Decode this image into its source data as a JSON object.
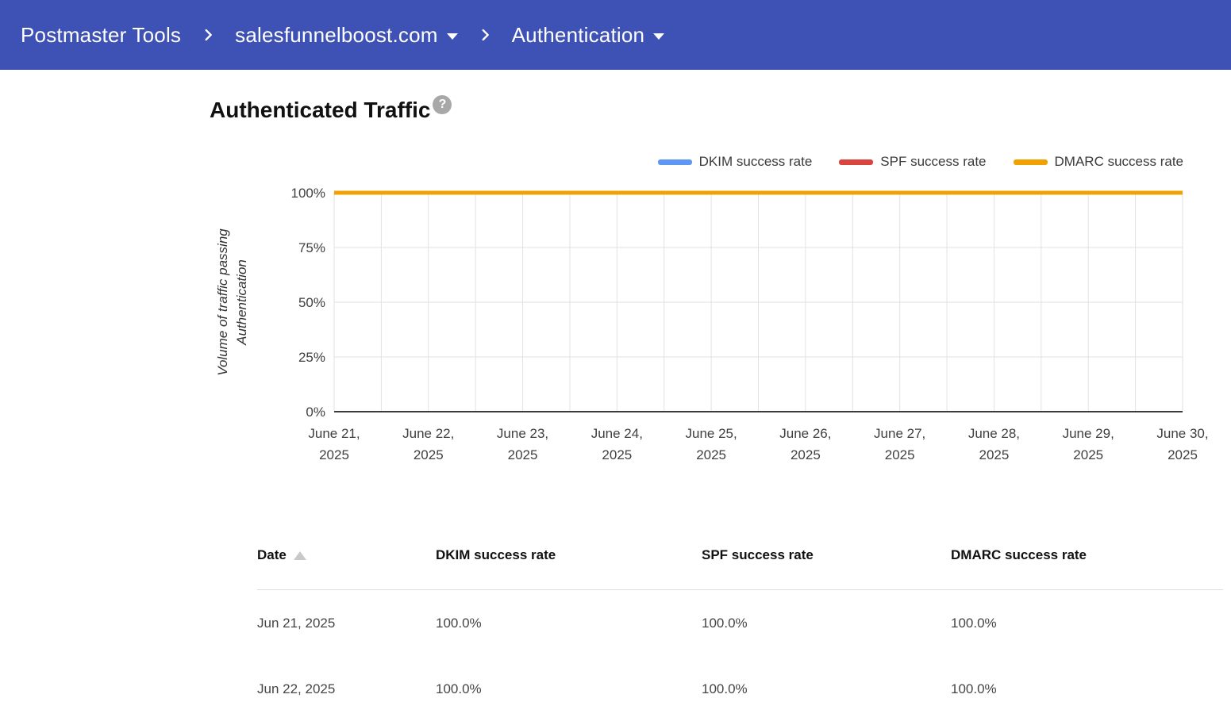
{
  "appbar": {
    "background_color": "#3e51b4",
    "breadcrumb": [
      {
        "label": "Postmaster Tools",
        "dropdown": false
      },
      {
        "label": "salesfunnelboost.com",
        "dropdown": true
      },
      {
        "label": "Authentication",
        "dropdown": true
      }
    ],
    "separator_icon": "chevron-right-icon",
    "dropdown_icon": "arrow-drop-down-icon"
  },
  "section": {
    "title": "Authenticated Traffic",
    "help_icon": "help-icon",
    "help_glyph": "?"
  },
  "chart_data": {
    "type": "line",
    "title": "Authenticated Traffic",
    "x": [
      "June 21, 2025",
      "June 22, 2025",
      "June 23, 2025",
      "June 24, 2025",
      "June 25, 2025",
      "June 26, 2025",
      "June 27, 2025",
      "June 28, 2025",
      "June 29, 2025",
      "June 30, 2025"
    ],
    "series": [
      {
        "name": "DKIM success rate",
        "color": "#5e97f6",
        "values": [
          100,
          100,
          100,
          100,
          100,
          100,
          100,
          100,
          100,
          100
        ]
      },
      {
        "name": "SPF success rate",
        "color": "#d9453d",
        "values": [
          100,
          100,
          100,
          100,
          100,
          100,
          100,
          100,
          100,
          100
        ]
      },
      {
        "name": "DMARC success rate",
        "color": "#f2a104",
        "values": [
          100,
          100,
          100,
          100,
          100,
          100,
          100,
          100,
          100,
          100
        ]
      }
    ],
    "ylabel": "Volume of traffic passing\nAuthentication",
    "yticks": [
      "100%",
      "75%",
      "50%",
      "25%",
      "0%"
    ],
    "ylim": [
      0,
      100
    ],
    "grid": true,
    "minor_vertical_gridlines": true,
    "legend_position": "top-right",
    "gridline_color": "#e2e2e2",
    "axis_line_color": "#3c3c3c"
  },
  "table": {
    "columns": [
      "Date",
      "DKIM success rate",
      "SPF success rate",
      "DMARC success rate"
    ],
    "sort_column": "Date",
    "sort_direction": "ascending",
    "sort_icon": "sort-asc-icon",
    "rows": [
      [
        "Jun 21, 2025",
        "100.0%",
        "100.0%",
        "100.0%"
      ],
      [
        "Jun 22, 2025",
        "100.0%",
        "100.0%",
        "100.0%"
      ]
    ]
  }
}
